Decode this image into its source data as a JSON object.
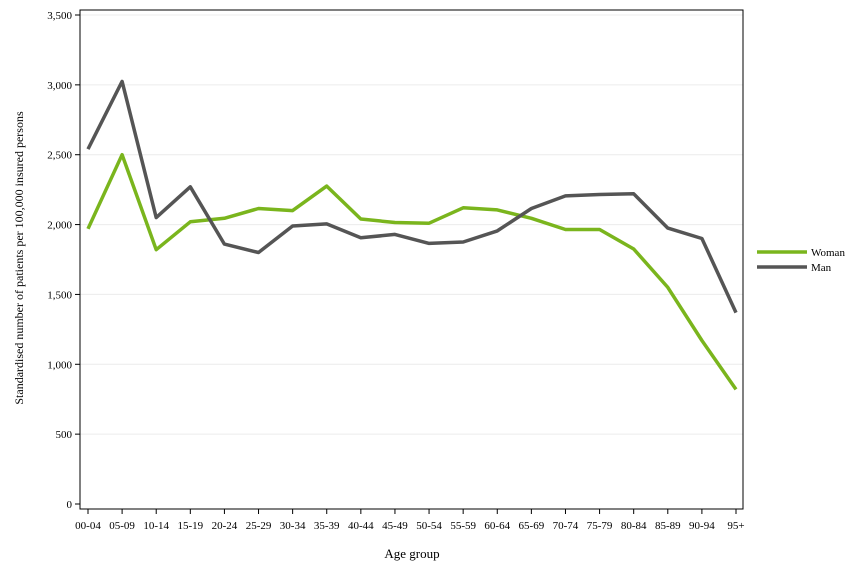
{
  "chart_data": {
    "type": "line",
    "xlabel": "Age group",
    "ylabel": "Standardised number of patients per 100,000 insured persons",
    "categories": [
      "00-04",
      "05-09",
      "10-14",
      "15-19",
      "20-24",
      "25-29",
      "30-34",
      "35-39",
      "40-44",
      "45-49",
      "50-54",
      "55-59",
      "60-64",
      "65-69",
      "70-74",
      "75-79",
      "80-84",
      "85-89",
      "90-94",
      "95+"
    ],
    "ylim": [
      0,
      3500
    ],
    "yticks": [
      0,
      500,
      1000,
      1500,
      2000,
      2500,
      3000,
      3500
    ],
    "ytick_labels": [
      "0",
      "500",
      "1,000",
      "1,500",
      "2,000",
      "2,500",
      "3,000",
      "3,500"
    ],
    "grid": "horizontal",
    "legend_position": "right",
    "series": [
      {
        "name": "Woman",
        "color": "#7ab51d",
        "values": [
          1970,
          2500,
          1820,
          2020,
          2045,
          2115,
          2100,
          2275,
          2040,
          2015,
          2010,
          2120,
          2105,
          2045,
          1965,
          1965,
          1825,
          1550,
          1170,
          820
        ]
      },
      {
        "name": "Man",
        "color": "#555555",
        "values": [
          2540,
          3025,
          2050,
          2270,
          1860,
          1800,
          1990,
          2005,
          1905,
          1930,
          1865,
          1875,
          1955,
          2115,
          2205,
          2215,
          2220,
          1975,
          1900,
          1370
        ]
      }
    ]
  }
}
